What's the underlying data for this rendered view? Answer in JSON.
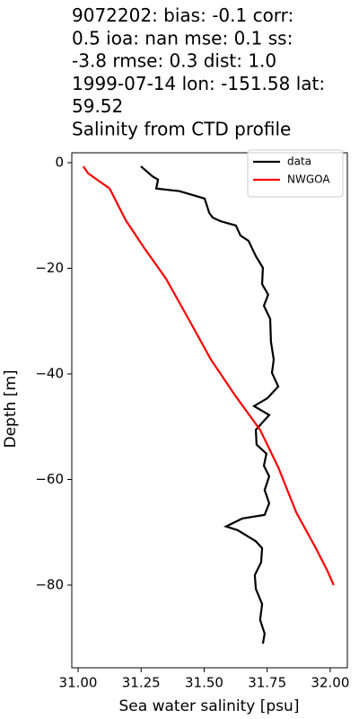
{
  "chart_data": {
    "type": "line",
    "title": [
      "9072202: bias: -0.1  corr:",
      "0.5  ioa: nan  mse: 0.1  ss:",
      "-3.8  rmse: 0.3  dist: 1.0",
      "1999-07-14 lon: -151.58 lat:",
      "59.52",
      "Salinity from CTD profile"
    ],
    "x_label": "Sea water salinity [psu]",
    "y_label": "Depth [m]",
    "xlim": [
      30.975,
      32.068
    ],
    "ylim": [
      -95.66,
      1.87
    ],
    "xticks": [
      {
        "value": 31,
        "label": "31.00"
      },
      {
        "value": 31.25,
        "label": "31.25"
      },
      {
        "value": 31.5,
        "label": "31.50"
      },
      {
        "value": 31.75,
        "label": "31.75"
      },
      {
        "value": 32,
        "label": "32.00"
      }
    ],
    "yticks": [
      0,
      {
        "value": -20,
        "label": "−20"
      },
      {
        "value": -40,
        "label": "−40"
      },
      {
        "value": -60,
        "label": "−60"
      },
      {
        "value": -80,
        "label": "−80"
      }
    ],
    "grid": false,
    "legend": "upper right",
    "series": [
      {
        "name": "data",
        "color": "#000000",
        "x": [
          31.249,
          31.295,
          31.317,
          31.31,
          31.402,
          31.502,
          31.52,
          31.534,
          31.566,
          31.626,
          31.644,
          31.676,
          31.705,
          31.733,
          31.73,
          31.754,
          31.737,
          31.762,
          31.765,
          31.776,
          31.769,
          31.794,
          31.751,
          31.698,
          31.758,
          31.705,
          31.708,
          31.747,
          31.737,
          31.758,
          31.74,
          31.758,
          31.74,
          31.651,
          31.587,
          31.633,
          31.705,
          31.73,
          31.726,
          31.701,
          31.705,
          31.73,
          31.722,
          31.74,
          31.733
        ],
        "values": [
          -0.7,
          -2.6,
          -3.2,
          -4.9,
          -5.4,
          -6.8,
          -9.5,
          -10.4,
          -11.1,
          -11.9,
          -13.8,
          -14.8,
          -17.7,
          -19.9,
          -23.0,
          -25.0,
          -27.1,
          -29.6,
          -33.9,
          -37.3,
          -39.8,
          -42.4,
          -44.6,
          -46.1,
          -47.8,
          -50.6,
          -53.4,
          -55.1,
          -57.4,
          -59.4,
          -62.0,
          -64.5,
          -66.7,
          -67.4,
          -68.9,
          -69.6,
          -71.7,
          -73.0,
          -75.7,
          -78.1,
          -80.7,
          -83.6,
          -86.6,
          -89.2,
          -91.1
        ]
      },
      {
        "name": "NWGOA",
        "color": "#ff0000",
        "x": [
          31.021,
          31.039,
          31.125,
          31.189,
          31.26,
          31.349,
          31.438,
          31.527,
          31.623,
          31.722,
          31.794,
          31.865,
          31.943,
          31.989,
          32.014
        ],
        "values": [
          -0.7,
          -2.0,
          -4.9,
          -10.9,
          -16.0,
          -22.0,
          -29.6,
          -37.3,
          -44.1,
          -50.6,
          -57.7,
          -66.2,
          -73.0,
          -77.3,
          -80.0
        ]
      }
    ]
  }
}
